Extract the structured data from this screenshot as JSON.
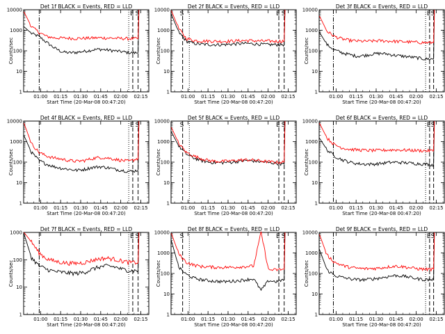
{
  "chart_data": [
    {
      "type": "line",
      "title": "Det 1f BLACK = Events, RED = LLD",
      "xlabel": "Start Time (20-Mar-08 00:47:20)",
      "ylabel": "Counts/sec",
      "yscale": "log",
      "ylim": [
        1,
        10000
      ],
      "x_ticks": [
        "01:00",
        "01:15",
        "01:30",
        "01:45",
        "02:00",
        "02:15"
      ],
      "y_ticks": [
        "1",
        "10",
        "100",
        "1000",
        "10000"
      ],
      "markers": [
        {
          "x": "00:59",
          "label": "",
          "style": "dashdot"
        },
        {
          "x": "02:06",
          "label": "",
          "style": "dotted"
        },
        {
          "x": "02:09",
          "label": "E",
          "style": "dashed"
        },
        {
          "x": "02:13",
          "label": "S",
          "style": "dashed"
        }
      ],
      "series": [
        {
          "color": "#000000",
          "values": [
            1500,
            700,
            500,
            260,
            140,
            90,
            80,
            85,
            95,
            110,
            120,
            110,
            100,
            90,
            80,
            80
          ]
        },
        {
          "color": "#ff0000",
          "values": [
            8000,
            1500,
            800,
            500,
            430,
            420,
            410,
            400,
            410,
            420,
            430,
            420,
            410,
            400,
            395,
            390
          ]
        }
      ]
    },
    {
      "type": "line",
      "title": "Det 2f BLACK = Events, RED = LLD",
      "xlabel": "Start Time (20-Mar-08 00:47:20)",
      "ylabel": "Counts/sec",
      "yscale": "log",
      "ylim": [
        1,
        10000
      ],
      "x_ticks": [
        "01:00",
        "01:15",
        "01:30",
        "01:45",
        "02:00",
        "02:15"
      ],
      "y_ticks": [
        "1",
        "10",
        "100",
        "1000",
        "10000"
      ],
      "markers": [
        {
          "x": "00:56",
          "label": "S",
          "style": "dashed"
        },
        {
          "x": "01:01",
          "label": "",
          "style": "dotted"
        },
        {
          "x": "02:08",
          "label": "E",
          "style": "dashed"
        },
        {
          "x": "02:12",
          "label": "S",
          "style": "dashed"
        }
      ],
      "series": [
        {
          "color": "#000000",
          "values": [
            6000,
            800,
            300,
            230,
            210,
            200,
            200,
            200,
            210,
            220,
            230,
            220,
            210,
            200,
            200,
            200
          ]
        },
        {
          "color": "#ff0000",
          "values": [
            9000,
            1200,
            400,
            320,
            300,
            300,
            290,
            290,
            300,
            310,
            320,
            310,
            300,
            300,
            290,
            300
          ]
        }
      ]
    },
    {
      "type": "line",
      "title": "Det 3f BLACK = Events, RED = LLD",
      "xlabel": "Start Time (20-Mar-08 00:47:20)",
      "ylabel": "Counts/sec",
      "yscale": "log",
      "ylim": [
        1,
        10000
      ],
      "x_ticks": [
        "01:00",
        "01:15",
        "01:30",
        "01:45",
        "02:00",
        "02:15"
      ],
      "y_ticks": [
        "1",
        "10",
        "100",
        "1000",
        "10000"
      ],
      "markers": [
        {
          "x": "00:58",
          "label": "",
          "style": "dashdot"
        },
        {
          "x": "02:07",
          "label": "",
          "style": "dotted"
        },
        {
          "x": "02:10",
          "label": "E",
          "style": "dashed"
        },
        {
          "x": "02:13",
          "label": "S",
          "style": "dashed"
        }
      ],
      "series": [
        {
          "color": "#000000",
          "values": [
            800,
            200,
            110,
            80,
            65,
            55,
            60,
            70,
            75,
            70,
            60,
            55,
            50,
            45,
            40,
            40
          ]
        },
        {
          "color": "#ff0000",
          "values": [
            5000,
            900,
            500,
            380,
            320,
            300,
            290,
            300,
            310,
            300,
            290,
            280,
            270,
            260,
            250,
            250
          ]
        }
      ]
    },
    {
      "type": "line",
      "title": "Det 4f BLACK = Events, RED = LLD",
      "xlabel": "Start Time (20-Mar-08 00:47:20)",
      "ylabel": "Counts/sec",
      "yscale": "log",
      "ylim": [
        1,
        10000
      ],
      "x_ticks": [
        "01:00",
        "01:15",
        "01:30",
        "01:45",
        "02:00",
        "02:15"
      ],
      "y_ticks": [
        "1",
        "10",
        "100",
        "1000",
        "10000"
      ],
      "markers": [
        {
          "x": "00:59",
          "label": "",
          "style": "dashdot"
        },
        {
          "x": "02:06",
          "label": "",
          "style": "dotted"
        },
        {
          "x": "02:09",
          "label": "E",
          "style": "dashed"
        },
        {
          "x": "02:13",
          "label": "S",
          "style": "dashed"
        }
      ],
      "series": [
        {
          "color": "#000000",
          "values": [
            2000,
            300,
            120,
            80,
            60,
            50,
            45,
            40,
            45,
            55,
            60,
            55,
            45,
            40,
            35,
            40
          ]
        },
        {
          "color": "#ff0000",
          "values": [
            8000,
            800,
            300,
            200,
            160,
            140,
            120,
            110,
            120,
            150,
            170,
            160,
            140,
            120,
            110,
            150
          ]
        }
      ]
    },
    {
      "type": "line",
      "title": "Det 5f BLACK = Events, RED = LLD",
      "xlabel": "Start Time (20-Mar-08 00:47:20)",
      "ylabel": "Counts/sec",
      "yscale": "log",
      "ylim": [
        1,
        10000
      ],
      "x_ticks": [
        "01:00",
        "01:15",
        "01:30",
        "01:45",
        "02:00",
        "02:15"
      ],
      "y_ticks": [
        "1",
        "10",
        "100",
        "1000",
        "10000"
      ],
      "markers": [
        {
          "x": "00:56",
          "label": "S",
          "style": "dashed"
        },
        {
          "x": "01:01",
          "label": "",
          "style": "dotted"
        },
        {
          "x": "02:08",
          "label": "E",
          "style": "dashed"
        },
        {
          "x": "02:12",
          "label": "S",
          "style": "dashed"
        }
      ],
      "series": [
        {
          "color": "#000000",
          "values": [
            3000,
            600,
            250,
            160,
            120,
            100,
            95,
            95,
            100,
            110,
            120,
            115,
            105,
            95,
            90,
            80
          ]
        },
        {
          "color": "#ff0000",
          "values": [
            5000,
            800,
            300,
            200,
            150,
            120,
            110,
            110,
            115,
            125,
            130,
            125,
            115,
            105,
            100,
            100
          ]
        }
      ]
    },
    {
      "type": "line",
      "title": "Det 6f BLACK = Events, RED = LLD",
      "xlabel": "Start Time (20-Mar-08 00:47:20)",
      "ylabel": "Counts/sec",
      "yscale": "log",
      "ylim": [
        1,
        10000
      ],
      "x_ticks": [
        "01:00",
        "01:15",
        "01:30",
        "01:45",
        "02:00",
        "02:15"
      ],
      "y_ticks": [
        "1",
        "10",
        "100",
        "1000",
        "10000"
      ],
      "markers": [
        {
          "x": "00:58",
          "label": "",
          "style": "dashdot"
        },
        {
          "x": "02:07",
          "label": "",
          "style": "dotted"
        },
        {
          "x": "02:10",
          "label": "E",
          "style": "dashed"
        },
        {
          "x": "02:13",
          "label": "S",
          "style": "dashed"
        }
      ],
      "series": [
        {
          "color": "#000000",
          "values": [
            1500,
            400,
            200,
            130,
            100,
            85,
            80,
            80,
            85,
            95,
            100,
            95,
            90,
            85,
            80,
            75
          ]
        },
        {
          "color": "#ff0000",
          "values": [
            8000,
            1500,
            700,
            500,
            420,
            400,
            380,
            370,
            375,
            390,
            400,
            390,
            380,
            370,
            360,
            360
          ]
        }
      ]
    },
    {
      "type": "line",
      "title": "Det 7f BLACK = Events, RED = LLD",
      "xlabel": "Start Time (20-Mar-08 00:47:20)",
      "ylabel": "Counts/sec",
      "yscale": "log",
      "ylim": [
        1,
        1000
      ],
      "x_ticks": [
        "01:00",
        "01:15",
        "01:30",
        "01:45",
        "02:00",
        "02:15"
      ],
      "y_ticks": [
        "1",
        "10",
        "100",
        "1000"
      ],
      "markers": [
        {
          "x": "00:59",
          "label": "",
          "style": "dashdot"
        },
        {
          "x": "02:06",
          "label": "",
          "style": "dotted"
        },
        {
          "x": "02:09",
          "label": "E",
          "style": "dashed"
        },
        {
          "x": "02:13",
          "label": "S",
          "style": "dashed"
        }
      ],
      "series": [
        {
          "color": "#000000",
          "values": [
            900,
            120,
            60,
            45,
            38,
            35,
            33,
            32,
            35,
            45,
            55,
            60,
            55,
            45,
            40,
            40
          ]
        },
        {
          "color": "#ff0000",
          "values": [
            1000,
            450,
            180,
            110,
            90,
            80,
            75,
            75,
            80,
            95,
            110,
            115,
            105,
            90,
            80,
            80
          ]
        }
      ]
    },
    {
      "type": "line",
      "title": "Det 8f BLACK = Events, RED = LLD",
      "xlabel": "Start Time (20-Mar-08 00:47:20)",
      "ylabel": "Counts/sec",
      "yscale": "log",
      "ylim": [
        1,
        10000
      ],
      "x_ticks": [
        "01:00",
        "01:15",
        "01:30",
        "01:45",
        "02:00",
        "02:15"
      ],
      "y_ticks": [
        "1",
        "10",
        "100",
        "1000",
        "10000"
      ],
      "markers": [
        {
          "x": "00:56",
          "label": "S",
          "style": "dashed"
        },
        {
          "x": "01:01",
          "label": "",
          "style": "dotted"
        },
        {
          "x": "02:08",
          "label": "E",
          "style": "dashed"
        },
        {
          "x": "02:12",
          "label": "S",
          "style": "dashed"
        }
      ],
      "series": [
        {
          "color": "#000000",
          "values": [
            4000,
            200,
            90,
            60,
            50,
            45,
            42,
            40,
            42,
            45,
            50,
            55,
            15,
            45,
            40,
            50
          ]
        },
        {
          "color": "#ff0000",
          "values": [
            9000,
            900,
            350,
            260,
            220,
            210,
            200,
            200,
            200,
            210,
            220,
            230,
            10000,
            150,
            150,
            160
          ]
        }
      ]
    },
    {
      "type": "line",
      "title": "Det 9f BLACK = Events, RED = LLD",
      "xlabel": "Start Time (20-Mar-08 00:47:20)",
      "ylabel": "Counts/sec",
      "yscale": "log",
      "ylim": [
        1,
        10000
      ],
      "x_ticks": [
        "01:00",
        "01:15",
        "01:30",
        "01:45",
        "02:00",
        "02:15"
      ],
      "y_ticks": [
        "1",
        "10",
        "100",
        "1000",
        "10000"
      ],
      "markers": [
        {
          "x": "00:58",
          "label": "",
          "style": "dashdot"
        },
        {
          "x": "02:07",
          "label": "",
          "style": "dotted"
        },
        {
          "x": "02:10",
          "label": "E",
          "style": "dashed"
        },
        {
          "x": "02:13",
          "label": "S",
          "style": "dashed"
        }
      ],
      "series": [
        {
          "color": "#000000",
          "values": [
            1500,
            150,
            80,
            65,
            55,
            50,
            50,
            55,
            60,
            70,
            80,
            75,
            65,
            55,
            50,
            50
          ]
        },
        {
          "color": "#ff0000",
          "values": [
            8000,
            800,
            350,
            250,
            200,
            180,
            170,
            175,
            185,
            210,
            230,
            215,
            190,
            170,
            160,
            160
          ]
        }
      ]
    }
  ]
}
